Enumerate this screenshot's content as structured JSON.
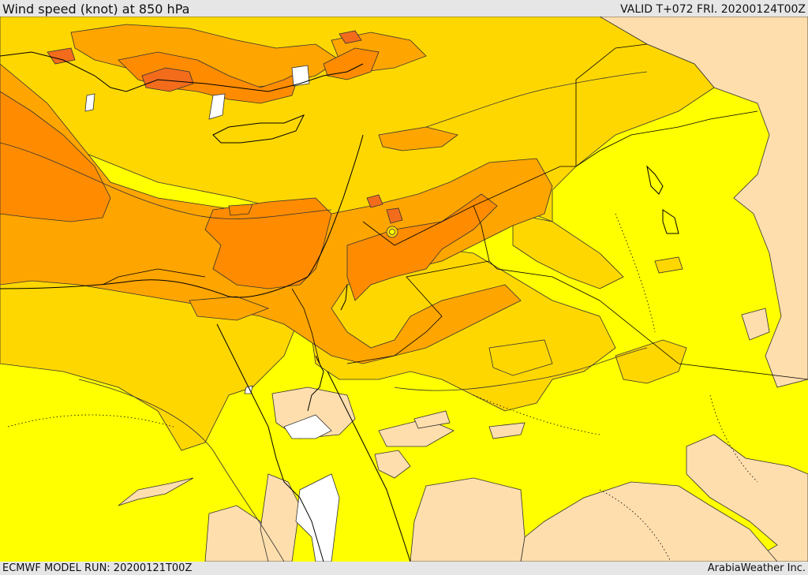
{
  "header": {
    "title": "Wind speed (knot) at 850 hPa",
    "valid": "VALID T+072 FRI. 20200124T00Z"
  },
  "footer": {
    "model_run": "ECMWF MODEL RUN: 20200121T00Z",
    "credit": "ArabiaWeather Inc."
  },
  "colors": {
    "calm": "#ffffff",
    "light": "#ffdead",
    "moderate": "#ffff00",
    "fresh": "#ffd700",
    "strong": "#ffa500",
    "very_strong": "#ff8c00",
    "gale": "#f26c1c",
    "contour": "#333333",
    "border": "#000000"
  }
}
